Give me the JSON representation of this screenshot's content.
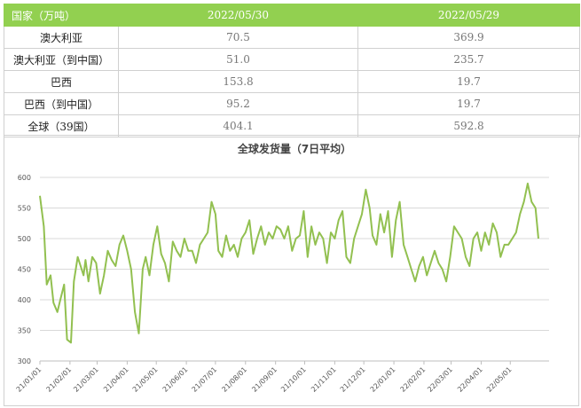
{
  "table": {
    "headers": [
      "国家（万吨）",
      "2022/05/30",
      "2022/05/29"
    ],
    "rows": [
      [
        "澳大利亚",
        "70.5",
        "369.9"
      ],
      [
        "澳大利亚（到中国）",
        "51.0",
        "235.7"
      ],
      [
        "巴西",
        "153.8",
        "19.7"
      ],
      [
        "巴西（到中国）",
        "95.2",
        "19.7"
      ],
      [
        "全球（39国）",
        "404.1",
        "592.8"
      ]
    ]
  },
  "colors": {
    "header_bg": "#92d050",
    "line": "#92c050",
    "grid": "#d9d9d9"
  },
  "chart_data": {
    "type": "line",
    "title": "全球发货量（7日平均）",
    "xlabel": "",
    "ylabel": "",
    "ylim": [
      300,
      600
    ],
    "yticks": [
      300,
      350,
      400,
      450,
      500,
      550,
      600
    ],
    "grid": true,
    "xlim": [
      "2021-01-01",
      "2022-06-10"
    ],
    "xticks": [
      {
        "date": "2021-01-01",
        "label": "21/01/01"
      },
      {
        "date": "2021-02-01",
        "label": "21/02/01"
      },
      {
        "date": "2021-03-01",
        "label": "21/03/01"
      },
      {
        "date": "2021-04-01",
        "label": "21/04/01"
      },
      {
        "date": "2021-05-01",
        "label": "21/05/01"
      },
      {
        "date": "2021-06-01",
        "label": "21/06/01"
      },
      {
        "date": "2021-07-01",
        "label": "21/07/01"
      },
      {
        "date": "2021-08-01",
        "label": "21/08/01"
      },
      {
        "date": "2021-09-01",
        "label": "21/09/01"
      },
      {
        "date": "2021-10-01",
        "label": "21/10/01"
      },
      {
        "date": "2021-11-01",
        "label": "21/11/01"
      },
      {
        "date": "2021-12-01",
        "label": "21/12/01"
      },
      {
        "date": "2022-01-01",
        "label": "22/01/01"
      },
      {
        "date": "2022-02-01",
        "label": "22/02/01"
      },
      {
        "date": "2022-03-01",
        "label": "22/03/01"
      },
      {
        "date": "2022-04-01",
        "label": "22/04/01"
      },
      {
        "date": "2022-05-01",
        "label": "22/05/01"
      }
    ],
    "series": [
      {
        "x": [
          "2021-01-01",
          "2021-01-05",
          "2021-01-08",
          "2021-01-12",
          "2021-01-15",
          "2021-01-19",
          "2021-01-22",
          "2021-01-26",
          "2021-01-29",
          "2021-02-02",
          "2021-02-05",
          "2021-02-09",
          "2021-02-12",
          "2021-02-15",
          "2021-02-17",
          "2021-02-20",
          "2021-02-24",
          "2021-02-28",
          "2021-03-04",
          "2021-03-08",
          "2021-03-12",
          "2021-03-16",
          "2021-03-20",
          "2021-03-24",
          "2021-03-28",
          "2021-04-01",
          "2021-04-05",
          "2021-04-09",
          "2021-04-13",
          "2021-04-17",
          "2021-04-20",
          "2021-04-24",
          "2021-04-28",
          "2021-05-02",
          "2021-05-06",
          "2021-05-10",
          "2021-05-14",
          "2021-05-18",
          "2021-05-22",
          "2021-05-26",
          "2021-05-30",
          "2021-06-03",
          "2021-06-07",
          "2021-06-11",
          "2021-06-15",
          "2021-06-19",
          "2021-06-23",
          "2021-06-27",
          "2021-07-01",
          "2021-07-04",
          "2021-07-08",
          "2021-07-12",
          "2021-07-16",
          "2021-07-20",
          "2021-07-24",
          "2021-07-28",
          "2021-08-01",
          "2021-08-05",
          "2021-08-09",
          "2021-08-13",
          "2021-08-17",
          "2021-08-21",
          "2021-08-25",
          "2021-08-29",
          "2021-09-02",
          "2021-09-06",
          "2021-09-10",
          "2021-09-14",
          "2021-09-18",
          "2021-09-22",
          "2021-09-26",
          "2021-09-30",
          "2021-10-04",
          "2021-10-08",
          "2021-10-12",
          "2021-10-16",
          "2021-10-20",
          "2021-10-24",
          "2021-10-28",
          "2021-11-01",
          "2021-11-05",
          "2021-11-09",
          "2021-11-13",
          "2021-11-17",
          "2021-11-21",
          "2021-11-25",
          "2021-11-29",
          "2021-12-03",
          "2021-12-07",
          "2021-12-10",
          "2021-12-14",
          "2021-12-18",
          "2021-12-22",
          "2021-12-26",
          "2021-12-30",
          "2022-01-03",
          "2022-01-07",
          "2022-01-11",
          "2022-01-15",
          "2022-01-19",
          "2022-01-23",
          "2022-01-27",
          "2022-01-31",
          "2022-02-04",
          "2022-02-08",
          "2022-02-12",
          "2022-02-16",
          "2022-02-20",
          "2022-02-24",
          "2022-02-28",
          "2022-03-04",
          "2022-03-08",
          "2022-03-12",
          "2022-03-16",
          "2022-03-20",
          "2022-03-24",
          "2022-03-28",
          "2022-04-01",
          "2022-04-05",
          "2022-04-09",
          "2022-04-13",
          "2022-04-17",
          "2022-04-21",
          "2022-04-25",
          "2022-04-29",
          "2022-05-03",
          "2022-05-07",
          "2022-05-11",
          "2022-05-15",
          "2022-05-19",
          "2022-05-23",
          "2022-05-27",
          "2022-05-30"
        ],
        "y": [
          570,
          520,
          425,
          440,
          395,
          380,
          400,
          425,
          335,
          330,
          430,
          470,
          455,
          440,
          465,
          430,
          470,
          460,
          410,
          440,
          480,
          465,
          455,
          490,
          505,
          480,
          450,
          380,
          345,
          450,
          470,
          440,
          490,
          520,
          475,
          460,
          430,
          495,
          480,
          470,
          500,
          480,
          480,
          460,
          490,
          500,
          510,
          560,
          540,
          480,
          470,
          505,
          480,
          490,
          470,
          500,
          510,
          530,
          475,
          500,
          520,
          490,
          510,
          500,
          520,
          515,
          500,
          520,
          480,
          500,
          505,
          545,
          470,
          520,
          490,
          510,
          500,
          460,
          510,
          500,
          530,
          545,
          470,
          460,
          500,
          520,
          540,
          580,
          550,
          505,
          490,
          540,
          510,
          545,
          470,
          530,
          560,
          490,
          470,
          450,
          430,
          455,
          470,
          440,
          460,
          480,
          460,
          450,
          430,
          470,
          520,
          510,
          500,
          470,
          455,
          500,
          510,
          480,
          510,
          490,
          525,
          510,
          470,
          490,
          490,
          500,
          510,
          540,
          560,
          590,
          560,
          550,
          500
        ]
      }
    ]
  }
}
